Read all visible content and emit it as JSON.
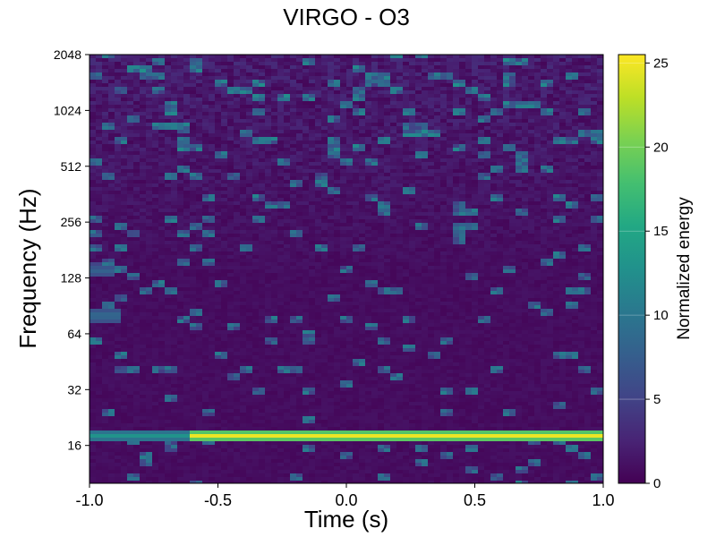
{
  "chart_data": {
    "type": "heatmap",
    "title": "VIRGO - O3",
    "xlabel": "Time (s)",
    "ylabel": "Frequency (Hz)",
    "xlim": [
      -1.0,
      1.0
    ],
    "ylim": [
      10,
      2048
    ],
    "yscale": "log2",
    "xticks": [
      -1.0,
      -0.5,
      0.0,
      0.5,
      1.0
    ],
    "xtick_labels": [
      "-1.0",
      "-0.5",
      "0.0",
      "0.5",
      "1.0"
    ],
    "yticks": [
      16,
      32,
      64,
      128,
      256,
      512,
      1024,
      2048
    ],
    "ytick_labels": [
      "16",
      "32",
      "64",
      "128",
      "256",
      "512",
      "1024",
      "2048"
    ],
    "colormap": "viridis",
    "colorbar": {
      "label": "Normalized energy",
      "range": [
        0,
        25.5
      ],
      "ticks": [
        0,
        5,
        10,
        15,
        20,
        25
      ],
      "tick_labels": [
        "0",
        "5",
        "10",
        "15",
        "20",
        "25"
      ]
    },
    "grid": false,
    "features": [
      {
        "t_start": -0.62,
        "t_end": 1.0,
        "freq": 18,
        "energy": 25
      },
      {
        "t_start": -1.0,
        "t_end": -0.62,
        "freq": 18,
        "energy": 13
      },
      {
        "t_start": -1.0,
        "t_end": -0.88,
        "freq": 80,
        "energy": 9
      },
      {
        "t_start": -1.0,
        "t_end": -0.9,
        "freq": 140,
        "energy": 8
      }
    ]
  }
}
